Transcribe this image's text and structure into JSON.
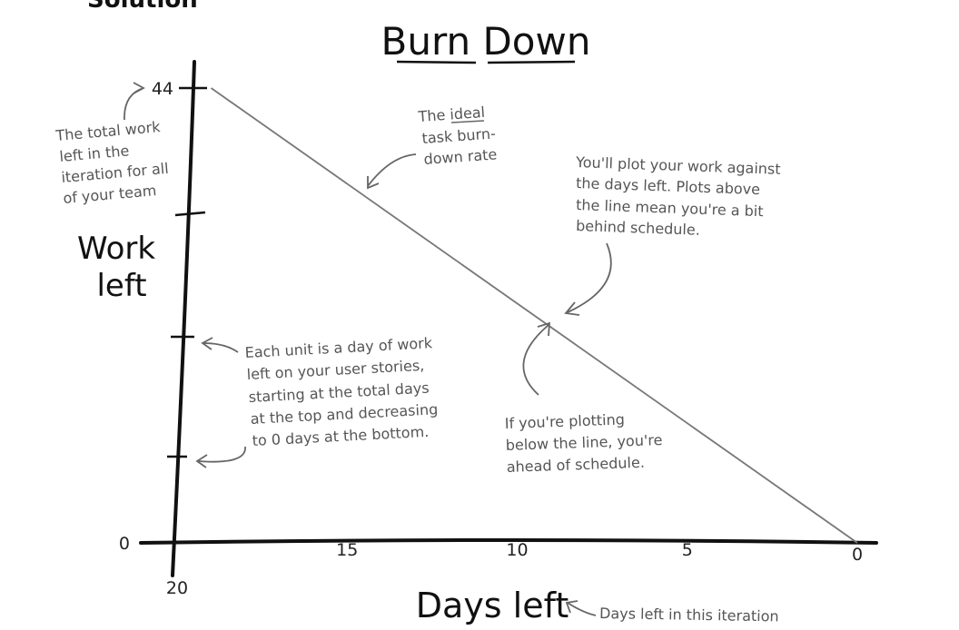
{
  "header": {
    "corner_text": "Solution"
  },
  "chart_data": {
    "type": "line",
    "title": "Burn Down",
    "xlabel": "Days left",
    "ylabel_lines": [
      "Work",
      "left"
    ],
    "x_ticks": [
      {
        "label": "20",
        "value": 20
      },
      {
        "label": "15",
        "value": 15
      },
      {
        "label": "10",
        "value": 10
      },
      {
        "label": "5",
        "value": 5
      },
      {
        "label": "0",
        "value": 0
      }
    ],
    "y_ticks": [
      {
        "label": "44",
        "value": 44
      },
      {
        "label": "0",
        "value": 0
      }
    ],
    "xlim": [
      20,
      0
    ],
    "ylim": [
      0,
      44
    ],
    "x_reversed": true,
    "grid": false,
    "series": [
      {
        "x": [
          19,
          0
        ],
        "y": [
          44,
          0
        ],
        "color": "#777777"
      }
    ],
    "annotations": {
      "total_work": [
        "The total work",
        "left in the",
        "iteration for all",
        "of your team"
      ],
      "ideal_rate": [
        "The ideal",
        "task burn-",
        "down rate"
      ],
      "plot_note": [
        "You'll plot your work against",
        "the days left. Plots above",
        "the line mean you're a bit",
        "behind schedule."
      ],
      "unit_note": [
        "Each unit is a day of work",
        "left on your user stories,",
        "starting at the total days",
        "at the top and decreasing",
        "to 0 days at the bottom."
      ],
      "below_note": [
        "If you're plotting",
        "below the line, you're",
        "ahead of schedule."
      ],
      "days_note": "Days left in this iteration"
    }
  }
}
